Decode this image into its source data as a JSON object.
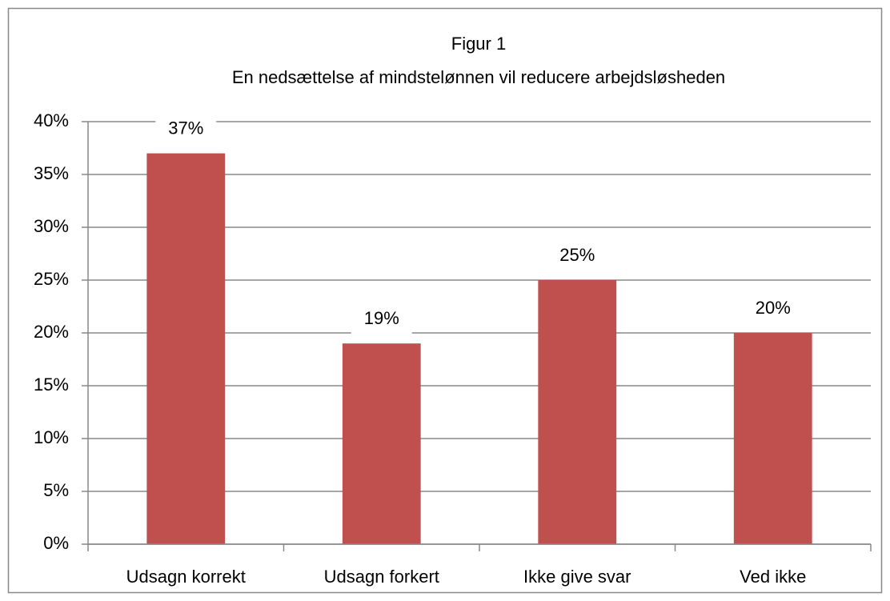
{
  "chart_data": {
    "type": "bar",
    "title": "Figur 1",
    "subtitle": "En nedsættelse af mindstelønnen vil reducere arbejdsløsheden",
    "categories": [
      "Udsagn korrekt",
      "Udsagn forkert",
      "Ikke give svar",
      "Ved ikke"
    ],
    "values": [
      37,
      19,
      25,
      20
    ],
    "value_labels": [
      "37%",
      "19%",
      "25%",
      "20%"
    ],
    "color": "#c0504d",
    "ylim": [
      0,
      40
    ],
    "yticks": [
      {
        "value": 0,
        "label": "0%"
      },
      {
        "value": 5,
        "label": "5%"
      },
      {
        "value": 10,
        "label": "10%"
      },
      {
        "value": 15,
        "label": "15%"
      },
      {
        "value": 20,
        "label": "20%"
      },
      {
        "value": 25,
        "label": "25%"
      },
      {
        "value": 30,
        "label": "30%"
      },
      {
        "value": 35,
        "label": "35%"
      },
      {
        "value": 40,
        "label": "40%"
      }
    ],
    "grid": true
  }
}
